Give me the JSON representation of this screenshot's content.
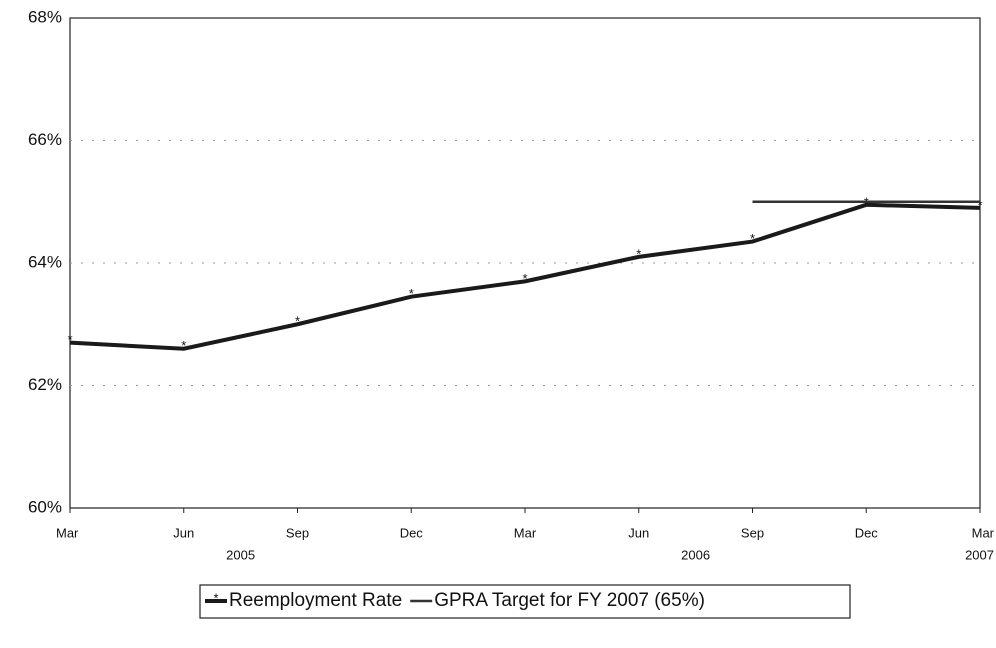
{
  "chart_data": {
    "type": "line",
    "categories": [
      "Mar",
      "Jun",
      "Sep",
      "Dec",
      "Mar",
      "Jun",
      "Sep",
      "Dec",
      "Mar"
    ],
    "years": [
      "2005",
      "2006",
      "2007"
    ],
    "series": [
      {
        "name": "Reemployment Rate",
        "color": "#1a1a1a",
        "values": [
          62.7,
          62.6,
          63.0,
          63.45,
          63.7,
          64.1,
          64.35,
          64.95,
          64.9
        ]
      },
      {
        "name": "GPRA Target for FY 2007 (65%)",
        "color": "#333333",
        "values": [
          null,
          null,
          null,
          null,
          null,
          null,
          65,
          65,
          65
        ]
      }
    ],
    "ylim": [
      60,
      68
    ],
    "yticks": [
      {
        "value": 60,
        "label": "60%"
      },
      {
        "value": 62,
        "label": "62%"
      },
      {
        "value": 64,
        "label": "64%"
      },
      {
        "value": 66,
        "label": "66%"
      },
      {
        "value": 68,
        "label": "68%"
      }
    ],
    "grid": true
  }
}
